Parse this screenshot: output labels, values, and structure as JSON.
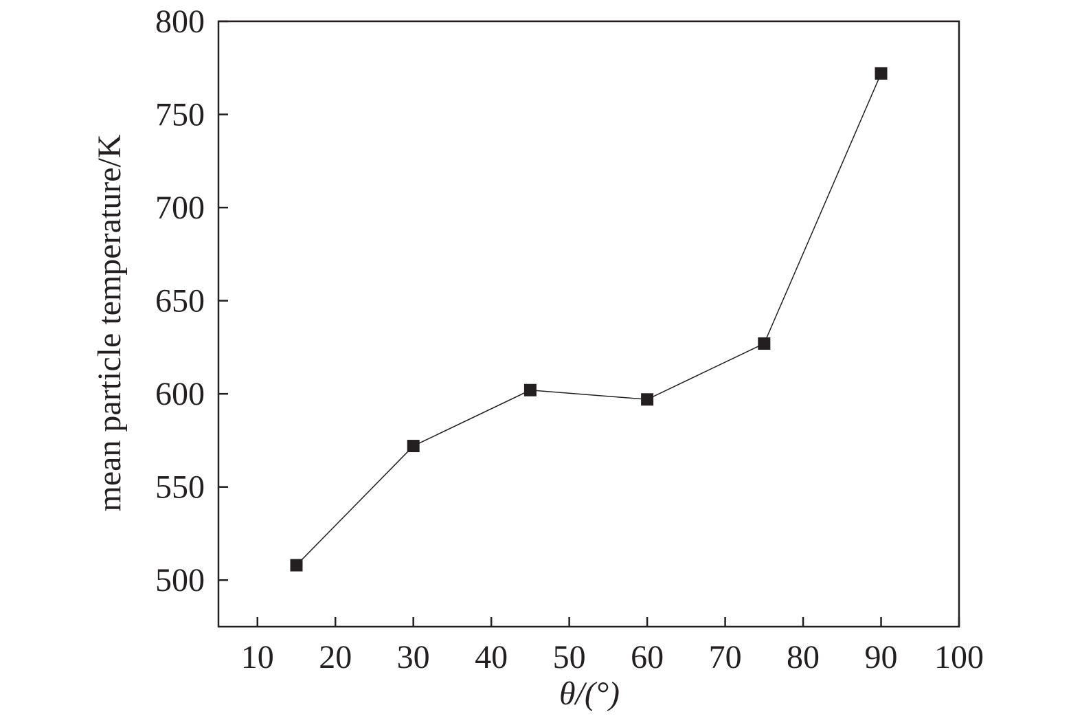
{
  "chart_data": {
    "type": "line",
    "x_label": "θ/(°)",
    "y_label": "mean particle temperature/K",
    "x": [
      15,
      30,
      45,
      60,
      75,
      90
    ],
    "series": [
      {
        "color": "#231f20",
        "values": [
          508,
          572,
          602,
          597,
          627,
          772
        ]
      }
    ],
    "xlim": [
      5,
      100
    ],
    "xticks": [
      10,
      20,
      30,
      40,
      50,
      60,
      70,
      80,
      90,
      100
    ],
    "ylim": [
      475,
      800
    ],
    "yticks": [
      500,
      550,
      600,
      650,
      700,
      750,
      800
    ],
    "grid": false
  }
}
